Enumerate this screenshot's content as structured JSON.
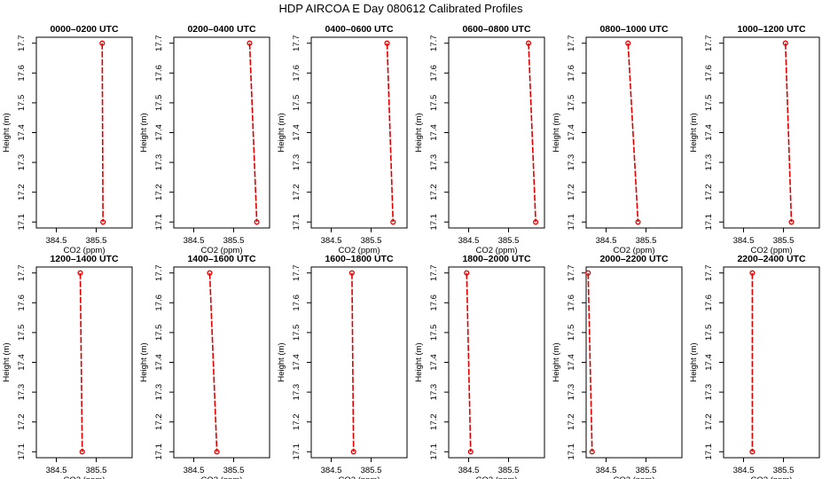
{
  "page_title": "HDP AIRCOA E  Day 080612  Calibrated Profiles",
  "chart_data": {
    "type": "line",
    "x_ticks": [
      "384.5",
      "385.5"
    ],
    "x_tick_values": [
      384.5,
      385.5
    ],
    "y_ticks": [
      "17.1",
      "17.2",
      "17.3",
      "17.4",
      "17.5",
      "17.6",
      "17.7"
    ],
    "y_tick_values": [
      17.1,
      17.2,
      17.3,
      17.4,
      17.5,
      17.6,
      17.7
    ],
    "xlim": [
      384.0,
      386.4
    ],
    "ylim": [
      17.08,
      17.72
    ],
    "xlabel": "CO2 (ppm)",
    "ylabel": "Height (m)",
    "color": "#e00000",
    "panels": [
      {
        "title": "0000–0200 UTC",
        "points": [
          {
            "x": 385.65,
            "y": 17.7
          },
          {
            "x": 385.67,
            "y": 17.1
          }
        ]
      },
      {
        "title": "0200–0400 UTC",
        "points": [
          {
            "x": 385.9,
            "y": 17.7
          },
          {
            "x": 386.08,
            "y": 17.1
          }
        ]
      },
      {
        "title": "0400–0600 UTC",
        "points": [
          {
            "x": 385.9,
            "y": 17.7
          },
          {
            "x": 386.05,
            "y": 17.1
          }
        ]
      },
      {
        "title": "0600–0800 UTC",
        "points": [
          {
            "x": 386.0,
            "y": 17.7
          },
          {
            "x": 386.18,
            "y": 17.1
          }
        ]
      },
      {
        "title": "0800–1000 UTC",
        "points": [
          {
            "x": 385.05,
            "y": 17.7
          },
          {
            "x": 385.3,
            "y": 17.1
          }
        ]
      },
      {
        "title": "1000–1200 UTC",
        "points": [
          {
            "x": 385.55,
            "y": 17.7
          },
          {
            "x": 385.7,
            "y": 17.1
          }
        ]
      },
      {
        "title": "1200–1400 UTC",
        "points": [
          {
            "x": 385.1,
            "y": 17.7
          },
          {
            "x": 385.15,
            "y": 17.1
          }
        ]
      },
      {
        "title": "1400–1600 UTC",
        "points": [
          {
            "x": 384.9,
            "y": 17.7
          },
          {
            "x": 385.08,
            "y": 17.1
          }
        ]
      },
      {
        "title": "1600–1800 UTC",
        "points": [
          {
            "x": 385.02,
            "y": 17.7
          },
          {
            "x": 385.06,
            "y": 17.1
          }
        ]
      },
      {
        "title": "1800–2000 UTC",
        "points": [
          {
            "x": 384.45,
            "y": 17.7
          },
          {
            "x": 384.55,
            "y": 17.1
          }
        ]
      },
      {
        "title": "2000–2200 UTC",
        "points": [
          {
            "x": 384.05,
            "y": 17.7
          },
          {
            "x": 384.15,
            "y": 17.1
          }
        ]
      },
      {
        "title": "2200–2400 UTC",
        "points": [
          {
            "x": 384.72,
            "y": 17.7
          },
          {
            "x": 384.72,
            "y": 17.1
          }
        ]
      }
    ]
  }
}
